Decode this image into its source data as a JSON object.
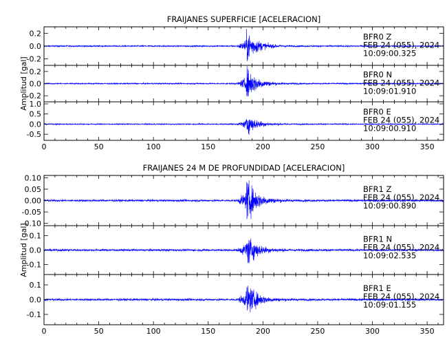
{
  "colors": {
    "trace": "#0000ff",
    "axes": "#000000",
    "background": "#ffffff"
  },
  "chart_data": [
    {
      "type": "line",
      "title": "FRAIJANES SUPERFICIE [ACELERACION]",
      "ylabel": "Amplitud [gal]",
      "xlim": [
        0,
        365
      ],
      "xticks": [
        0,
        50,
        100,
        150,
        200,
        250,
        300,
        350
      ],
      "event_onset_s": 176,
      "event_peak_s": 185,
      "panels": [
        {
          "station": "BFR0",
          "channel": "Z",
          "date": "FEB 24 (055), 2024",
          "time": "10:09:00.325",
          "ylim": [
            -0.3,
            0.3
          ],
          "yticks": [
            0.2,
            0.0,
            -0.2
          ],
          "ytick_labels": [
            "0.2",
            "0.0",
            "-0.2"
          ],
          "peak_abs": 0.27,
          "noise_abs": 0.012
        },
        {
          "station": "BFR0",
          "channel": "N",
          "date": "FEB 24 (055), 2024",
          "time": "10:09:01.910",
          "ylim": [
            -0.3,
            0.3
          ],
          "yticks": [
            0.2,
            0.0,
            -0.2
          ],
          "ytick_labels": [
            "0.2",
            "0.0",
            "-0.2"
          ],
          "peak_abs": 0.29,
          "noise_abs": 0.012
        },
        {
          "station": "BFR0",
          "channel": "E",
          "date": "FEB 24 (055), 2024",
          "time": "10:09:00.910",
          "ylim": [
            -0.8,
            1.1
          ],
          "yticks": [
            1.0,
            0.5,
            0.0,
            -0.5
          ],
          "ytick_labels": [
            "1.0",
            "0.5",
            "0.0",
            "-0.5"
          ],
          "peak_abs": 0.55,
          "noise_abs": 0.03
        }
      ]
    },
    {
      "type": "line",
      "title": "FRAIJANES 24 M DE PROFUNDIDAD [ACELERACION]",
      "ylabel": "Amplitud [gal]",
      "xlim": [
        0,
        365
      ],
      "xticks": [
        0,
        50,
        100,
        150,
        200,
        250,
        300,
        350
      ],
      "event_onset_s": 176,
      "event_peak_s": 185,
      "panels": [
        {
          "station": "BFR1",
          "channel": "Z",
          "date": "FEB 24 (055), 2024",
          "time": "10:09:00.890",
          "ylim": [
            -0.11,
            0.11
          ],
          "yticks": [
            0.1,
            0.05,
            0.0,
            -0.05,
            -0.1
          ],
          "ytick_labels": [
            "0.10",
            "0.05",
            "0.00",
            "-0.05",
            "-0.10"
          ],
          "peak_abs": 0.1,
          "noise_abs": 0.005
        },
        {
          "station": "BFR1",
          "channel": "N",
          "date": "FEB 24 (055), 2024",
          "time": "10:09:02.535",
          "ylim": [
            -0.17,
            0.17
          ],
          "yticks": [
            0.1,
            0.0,
            -0.1
          ],
          "ytick_labels": [
            "0.1",
            "0.0",
            "-0.1"
          ],
          "peak_abs": 0.12,
          "noise_abs": 0.008
        },
        {
          "station": "BFR1",
          "channel": "E",
          "date": "FEB 24 (055), 2024",
          "time": "10:09:01.155",
          "ylim": [
            -0.17,
            0.17
          ],
          "yticks": [
            0.1,
            0.0,
            -0.1
          ],
          "ytick_labels": [
            "0.1",
            "0.0",
            "-0.1"
          ],
          "peak_abs": 0.12,
          "noise_abs": 0.008
        }
      ]
    }
  ]
}
